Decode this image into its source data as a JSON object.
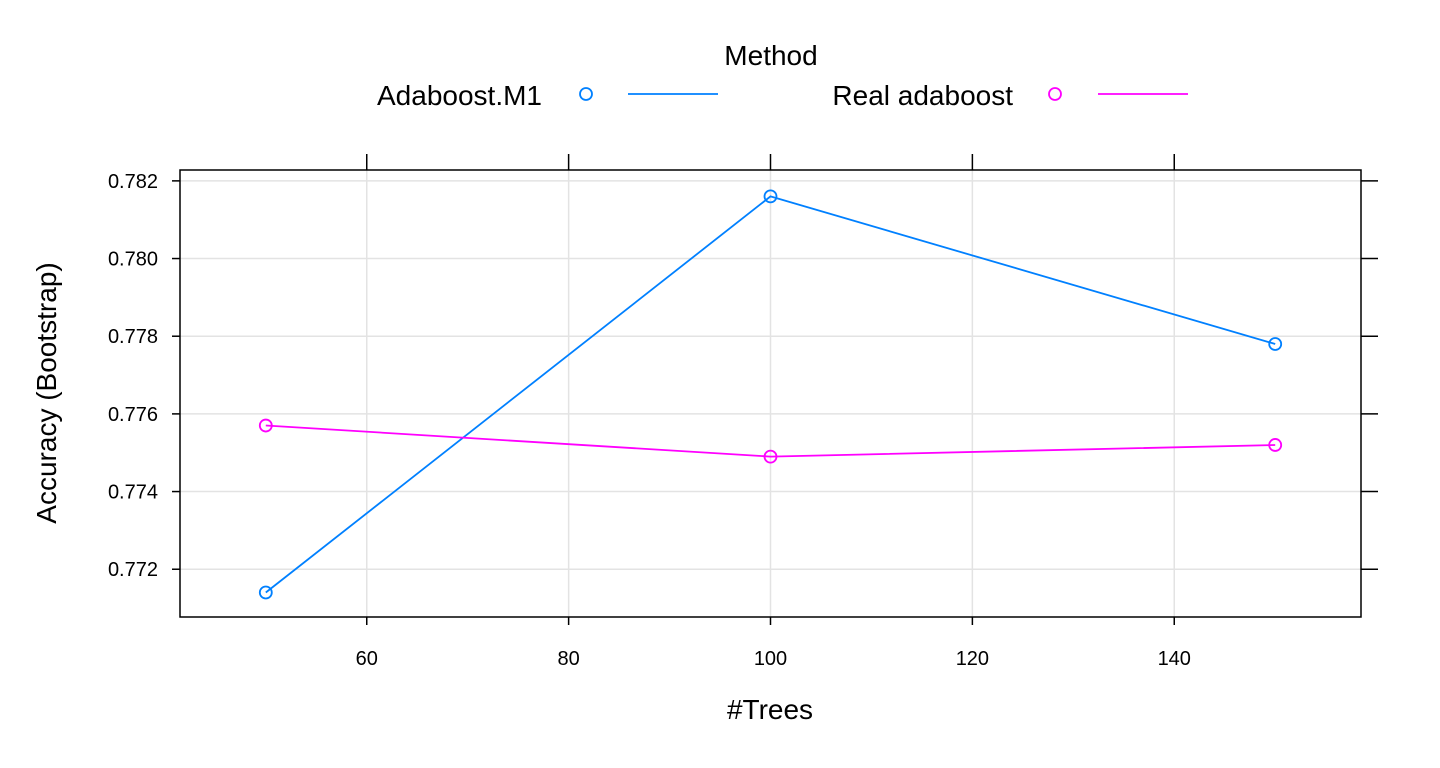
{
  "chart_data": {
    "type": "line",
    "xlabel": "#Trees",
    "ylabel": "Accuracy (Bootstrap)",
    "legend_title": "Method",
    "legend_position": "top",
    "grid": true,
    "x": [
      50,
      100,
      150
    ],
    "xlim": [
      41.5,
      158.5
    ],
    "ylim": [
      0.77077,
      0.78228
    ],
    "xticks": [
      60,
      80,
      100,
      120,
      140
    ],
    "yticks": [
      0.772,
      0.774,
      0.776,
      0.778,
      0.78,
      0.782
    ],
    "ytick_labels": [
      "0.772",
      "0.774",
      "0.776",
      "0.778",
      "0.780",
      "0.782"
    ],
    "series": [
      {
        "name": "Adaboost.M1",
        "color": "#0080ff",
        "values": [
          0.7714,
          0.7816,
          0.7778
        ]
      },
      {
        "name": "Real adaboost",
        "color": "#ff00ff",
        "values": [
          0.7757,
          0.7749,
          0.7752
        ]
      }
    ]
  }
}
